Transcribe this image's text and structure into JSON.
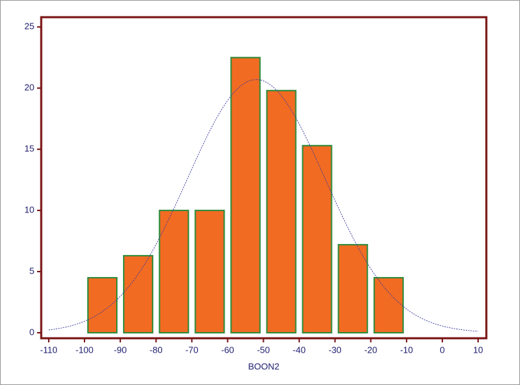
{
  "chart_data": {
    "type": "histogram",
    "x_label": "BOON2",
    "bins": [
      -100,
      -90,
      -80,
      -70,
      -60,
      -50,
      -40,
      -30,
      -20,
      -10
    ],
    "values": [
      4.5,
      6.3,
      10,
      10,
      22.5,
      19.8,
      15.3,
      7.2,
      4.5
    ],
    "color": "#f26b22",
    "edge_color": "#2e8b3a",
    "fit": {
      "mean": -52,
      "sd": 19.3,
      "peak": 20.7,
      "color": "#3a3a9e"
    },
    "xlim": [
      -112.1,
      12.3
    ],
    "ylim": [
      -0.45,
      25.8
    ],
    "xticks": [
      -110,
      -100,
      -90,
      -80,
      -70,
      -60,
      -50,
      -40,
      -30,
      -20,
      -10,
      0,
      10
    ],
    "yticks": [
      0,
      5,
      10,
      15,
      20,
      25
    ]
  }
}
